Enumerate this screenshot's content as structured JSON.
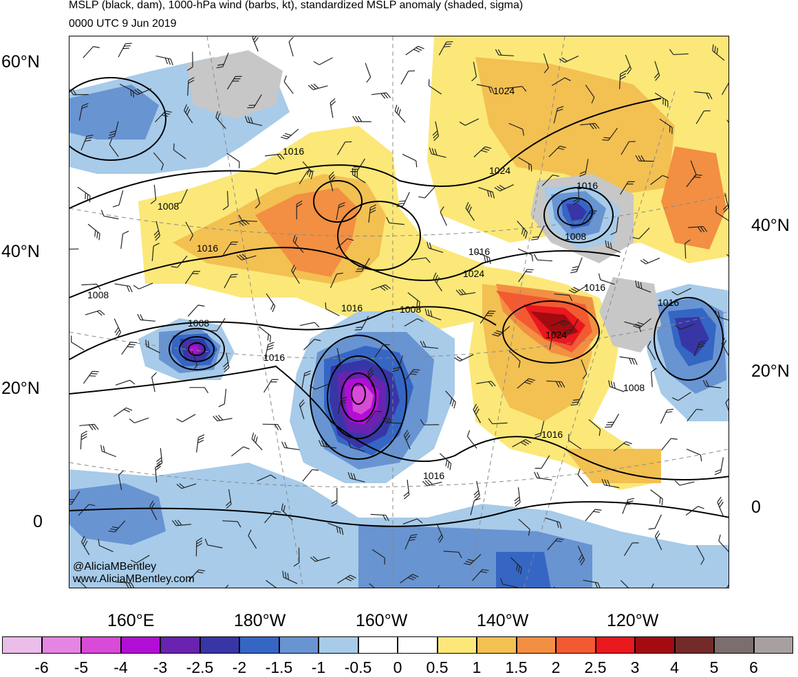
{
  "title": {
    "line1": "MSLP (black, dam), 1000-hPa wind (barbs, kt), standardized MSLP anomaly (shaded, sigma)",
    "line2": "0000 UTC 9 Jun 2019"
  },
  "credits": {
    "handle": "@AliciaMBentley",
    "website": "www.AliciaMBentley.com"
  },
  "lat_labels_left": [
    "60°N",
    "40°N",
    "20°N",
    "0"
  ],
  "lat_labels_right": [
    "40°N",
    "20°N",
    "0"
  ],
  "lon_labels": [
    "160°E",
    "180°W",
    "160°W",
    "140°W",
    "120°W"
  ],
  "isobar_labels": [
    "1024",
    "1024",
    "1016",
    "1016",
    "1016",
    "1008",
    "1008",
    "1016",
    "1024",
    "1016",
    "1008",
    "1016",
    "1008",
    "1008",
    "1016",
    "1016",
    "1024",
    "1008",
    "1016",
    "1016"
  ],
  "colorbar": {
    "colors": [
      "#ebbde9",
      "#e585e3",
      "#d84ad8",
      "#b20ed5",
      "#6a22b0",
      "#3836a6",
      "#3566c4",
      "#6894d2",
      "#a7cbe9",
      "#ffffff",
      "#ffffff",
      "#fbe878",
      "#f3c052",
      "#f28f42",
      "#f35a32",
      "#e9171e",
      "#a30b10",
      "#722b28",
      "#7b6e6c",
      "#a8a0a0"
    ],
    "labels": [
      "-6",
      "-5",
      "-4",
      "-3",
      "-2.5",
      "-2",
      "-1.5",
      "-1",
      "-0.5",
      "0",
      "0.5",
      "1",
      "1.5",
      "2",
      "2.5",
      "3",
      "4",
      "5",
      "6"
    ]
  }
}
